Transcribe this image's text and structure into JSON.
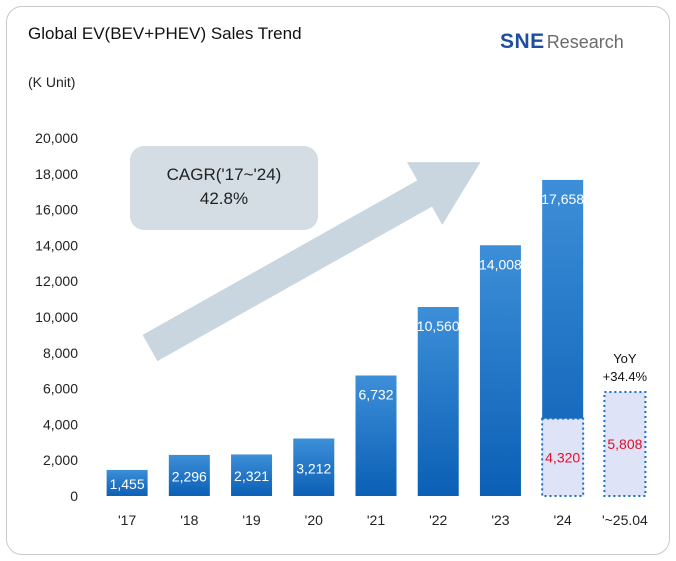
{
  "header": {
    "title": "Global EV(BEV+PHEV) Sales Trend",
    "unit": "(K Unit)",
    "logo_brand": "SNE",
    "logo_sub": "Research"
  },
  "chart_data": {
    "type": "bar",
    "categories": [
      "'17",
      "'18",
      "'19",
      "'20",
      "'21",
      "'22",
      "'23",
      "'24",
      "'~25.04"
    ],
    "values": [
      1455,
      2296,
      2321,
      3212,
      6732,
      10560,
      14008,
      17658,
      5808
    ],
    "value_labels": [
      "1,455",
      "2,296",
      "2,321",
      "3,212",
      "6,732",
      "10,560",
      "14,008",
      "17,658",
      "5,808"
    ],
    "highlight": {
      "category": "'24",
      "value": 4320,
      "label": "4,320"
    },
    "ylim": [
      0,
      20000
    ],
    "yticks": [
      0,
      2000,
      4000,
      6000,
      8000,
      10000,
      12000,
      14000,
      16000,
      18000,
      20000
    ],
    "ytick_labels": [
      "0",
      "2,000",
      "4,000",
      "6,000",
      "8,000",
      "10,000",
      "12,000",
      "14,000",
      "16,000",
      "18,000",
      "20,000"
    ],
    "annotation_cagr": {
      "line1": "CAGR('17~'24)",
      "line2": "42.8%"
    },
    "annotation_yoy": {
      "line1": "YoY",
      "line2": "+34.4%"
    },
    "colors": {
      "bar_top": "#3d8fd8",
      "bar_bottom": "#0b5fb5",
      "highlight_fill": "#dfe3f7",
      "highlight_border": "#1a6fc4",
      "label_red": "#e0102a",
      "arrow": "#c9d6e0",
      "cagr_box": "#d3dde3"
    }
  }
}
